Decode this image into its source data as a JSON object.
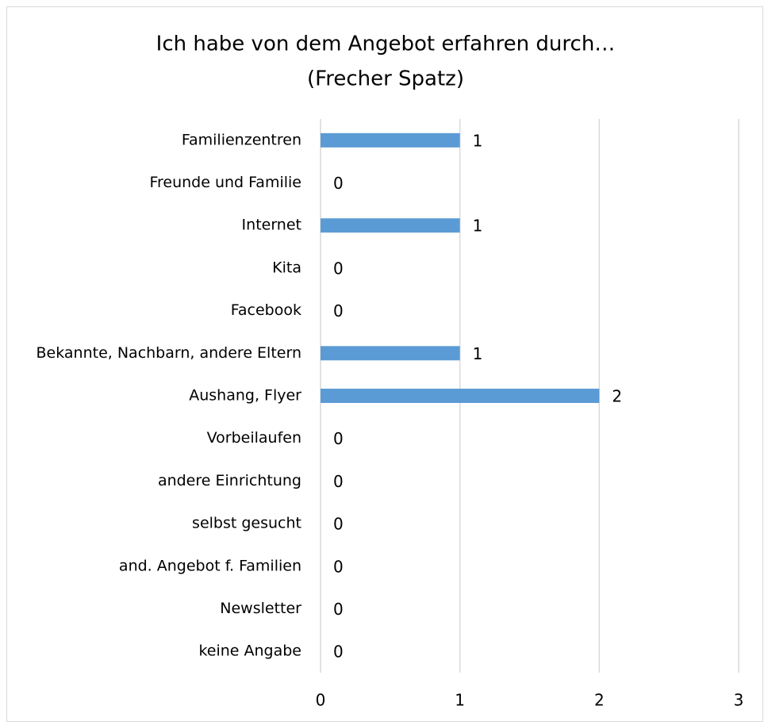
{
  "chart_data": {
    "type": "bar",
    "orientation": "horizontal",
    "title": "Ich habe von dem Angebot erfahren durch…",
    "subtitle": "(Frecher Spatz)",
    "categories": [
      "Familienzentren",
      "Freunde und Familie",
      "Internet",
      "Kita",
      "Facebook",
      "Bekannte, Nachbarn, andere Eltern",
      "Aushang, Flyer",
      "Vorbeilaufen",
      "andere Einrichtung",
      "selbst gesucht",
      "and. Angebot f. Familien",
      "Newsletter",
      "keine Angabe"
    ],
    "values": [
      1,
      0,
      1,
      0,
      0,
      1,
      2,
      0,
      0,
      0,
      0,
      0,
      0
    ],
    "color": "#5b9bd5",
    "xlim": [
      0,
      3
    ],
    "xticks": [
      0,
      1,
      2,
      3
    ],
    "grid": true
  }
}
